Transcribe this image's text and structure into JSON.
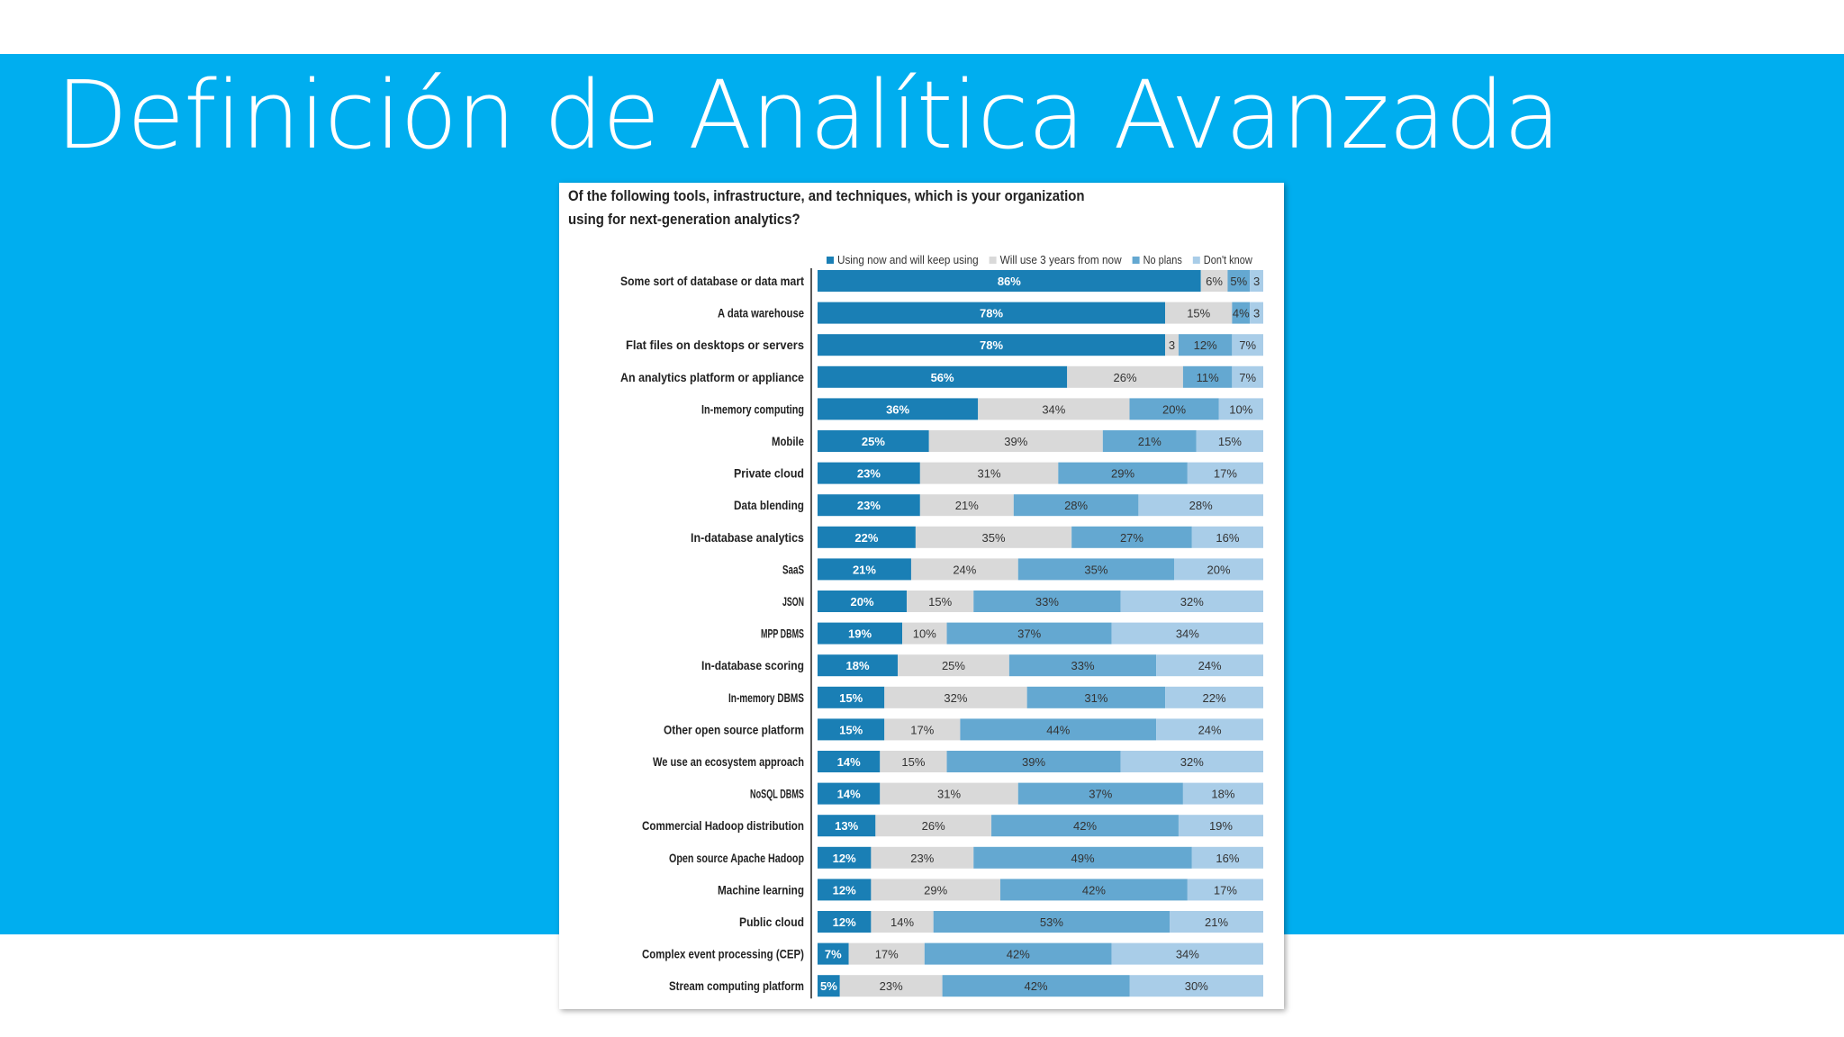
{
  "slide": {
    "title": "Definición de Analítica Avanzada"
  },
  "colors": {
    "band": "#00aeef",
    "series": [
      "#1a7fb5",
      "#d9d9d9",
      "#64a8d1",
      "#a9cde8"
    ]
  },
  "chart_data": {
    "type": "bar",
    "orientation": "horizontal",
    "stacked": true,
    "title": "Of the following tools, infrastructure, and techniques, which is your organization using for next-generation analytics?",
    "legend_position": "top",
    "categories": [
      "Some sort of database or data mart",
      "A data warehouse",
      "Flat files on desktops or servers",
      "An analytics platform or appliance",
      "In-memory computing",
      "Mobile",
      "Private cloud",
      "Data blending",
      "In-database analytics",
      "SaaS",
      "JSON",
      "MPP DBMS",
      "In-database scoring",
      "In-memory DBMS",
      "Other open source platform",
      "We use an ecosystem approach",
      "NoSQL DBMS",
      "Commercial Hadoop distribution",
      "Open source Apache Hadoop",
      "Machine learning",
      "Public cloud",
      "Complex event processing (CEP)",
      "Stream computing platform"
    ],
    "series": [
      {
        "name": "Using now and will keep using",
        "values": [
          86,
          78,
          78,
          56,
          36,
          25,
          23,
          23,
          22,
          21,
          20,
          19,
          18,
          15,
          15,
          14,
          14,
          13,
          12,
          12,
          12,
          7,
          5
        ]
      },
      {
        "name": "Will use 3 years from now",
        "values": [
          6,
          15,
          3,
          26,
          34,
          39,
          31,
          21,
          35,
          24,
          15,
          10,
          25,
          32,
          17,
          15,
          31,
          26,
          23,
          29,
          14,
          17,
          23
        ]
      },
      {
        "name": "No plans",
        "values": [
          5,
          4,
          12,
          11,
          20,
          21,
          29,
          28,
          27,
          35,
          33,
          37,
          33,
          31,
          44,
          39,
          37,
          42,
          49,
          42,
          53,
          42,
          42
        ]
      },
      {
        "name": "Don't know",
        "values": [
          3,
          3,
          7,
          7,
          10,
          15,
          17,
          28,
          16,
          20,
          32,
          34,
          24,
          22,
          24,
          32,
          18,
          19,
          16,
          17,
          21,
          34,
          30
        ]
      }
    ],
    "value_labels": [
      [
        "86%",
        "6%",
        "5%",
        "3"
      ],
      [
        "78%",
        "15%",
        "4%",
        "3"
      ],
      [
        "78%",
        "3",
        "12%",
        "7%"
      ],
      [
        "56%",
        "26%",
        "11%",
        "7%"
      ],
      [
        "36%",
        "34%",
        "20%",
        "10%"
      ],
      [
        "25%",
        "39%",
        "21%",
        "15%"
      ],
      [
        "23%",
        "31%",
        "29%",
        "17%"
      ],
      [
        "23%",
        "21%",
        "28%",
        "28%"
      ],
      [
        "22%",
        "35%",
        "27%",
        "16%"
      ],
      [
        "21%",
        "24%",
        "35%",
        "20%"
      ],
      [
        "20%",
        "15%",
        "33%",
        "32%"
      ],
      [
        "19%",
        "10%",
        "37%",
        "34%"
      ],
      [
        "18%",
        "25%",
        "33%",
        "24%"
      ],
      [
        "15%",
        "32%",
        "31%",
        "22%"
      ],
      [
        "15%",
        "17%",
        "44%",
        "24%"
      ],
      [
        "14%",
        "15%",
        "39%",
        "32%"
      ],
      [
        "14%",
        "31%",
        "37%",
        "18%"
      ],
      [
        "13%",
        "26%",
        "42%",
        "19%"
      ],
      [
        "12%",
        "23%",
        "49%",
        "16%"
      ],
      [
        "12%",
        "29%",
        "42%",
        "17%"
      ],
      [
        "12%",
        "14%",
        "53%",
        "21%"
      ],
      [
        "7%",
        "17%",
        "42%",
        "34%"
      ],
      [
        "5%",
        "23%",
        "42%",
        "30%"
      ]
    ]
  }
}
